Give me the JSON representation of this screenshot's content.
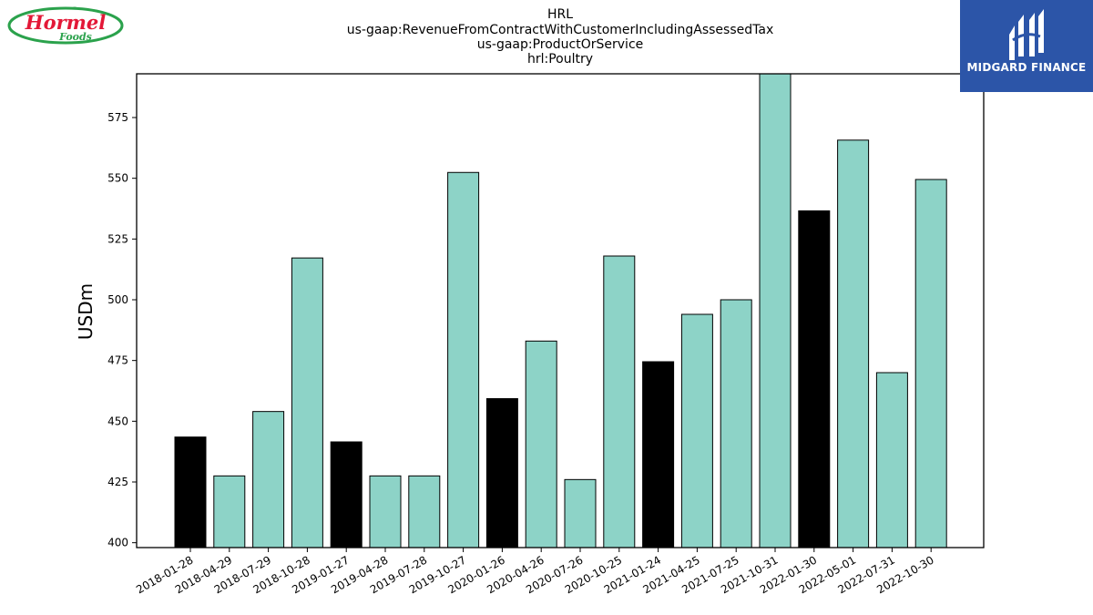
{
  "header": {
    "title_lines": [
      "HRL",
      "us-gaap:RevenueFromContractWithCustomerIncludingAssessedTax",
      "us-gaap:ProductOrService",
      "hrl:Poultry"
    ]
  },
  "logos": {
    "left": {
      "text": "Hormel",
      "subtext": "Foods"
    },
    "right": {
      "text": "MIDGARD FINANCE"
    }
  },
  "colors": {
    "bar_default": "#8dd3c7",
    "bar_highlight": "#000000",
    "hormel_red": "#e31837",
    "hormel_green": "#2ba24c",
    "midgard_blue": "#2c55a8"
  },
  "chart_data": {
    "type": "bar",
    "title": "HRL\nus-gaap:RevenueFromContractWithCustomerIncludingAssessedTax\nus-gaap:ProductOrService\nhrl:Poultry",
    "xlabel": "",
    "ylabel": "USDm",
    "categories": [
      "2018-01-28",
      "2018-04-29",
      "2018-07-29",
      "2018-10-28",
      "2019-01-27",
      "2019-04-28",
      "2019-07-28",
      "2019-10-27",
      "2020-01-26",
      "2020-04-26",
      "2020-07-26",
      "2020-10-25",
      "2021-01-24",
      "2021-04-25",
      "2021-07-25",
      "2021-10-31",
      "2022-01-30",
      "2022-05-01",
      "2022-07-31",
      "2022-10-30"
    ],
    "values": [
      443.5,
      427.5,
      454,
      517.2,
      441.5,
      427.5,
      427.5,
      552.4,
      459.3,
      483,
      426,
      518,
      474.5,
      494,
      500,
      593.5,
      536.6,
      565.7,
      470,
      549.5
    ],
    "highlighted": [
      true,
      false,
      false,
      false,
      true,
      false,
      false,
      false,
      true,
      false,
      false,
      false,
      true,
      false,
      false,
      false,
      true,
      false,
      false,
      false
    ],
    "ylim": [
      398,
      593
    ],
    "yticks": [
      400,
      425,
      450,
      475,
      500,
      525,
      550,
      575
    ],
    "grid": false,
    "legend": "none"
  }
}
